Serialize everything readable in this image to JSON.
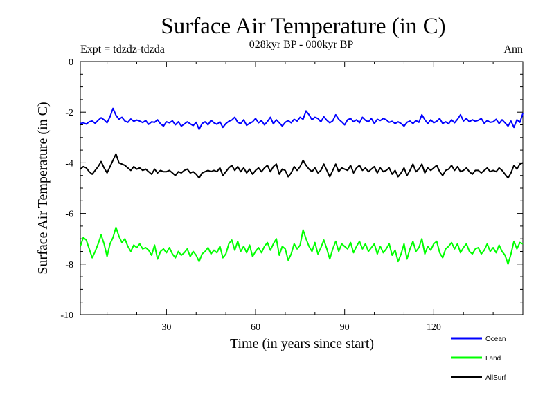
{
  "chart_data": {
    "type": "line",
    "title": "Surface Air Temperature (in C)",
    "subtitle": "028kyr BP - 000kyr BP",
    "experiment_label": "Expt = tdzdz-tdzda",
    "season_label": "Ann",
    "xlabel": "Time (in years since start)",
    "ylabel": "Surface Air Temperature (in C)",
    "xlim": [
      1,
      150
    ],
    "ylim": [
      -10,
      0
    ],
    "x_ticks": [
      30,
      60,
      90,
      120
    ],
    "y_ticks": [
      0,
      -2,
      -4,
      -6,
      -8,
      -10
    ],
    "grid": false,
    "legend_position": "bottom-right",
    "series": [
      {
        "name": "Ocean",
        "color": "#0000ff",
        "values": [
          -2.45,
          -2.42,
          -2.47,
          -2.38,
          -2.35,
          -2.44,
          -2.32,
          -2.22,
          -2.3,
          -2.42,
          -2.18,
          -1.85,
          -2.12,
          -2.28,
          -2.2,
          -2.35,
          -2.4,
          -2.27,
          -2.36,
          -2.31,
          -2.35,
          -2.41,
          -2.33,
          -2.48,
          -2.38,
          -2.4,
          -2.3,
          -2.46,
          -2.55,
          -2.38,
          -2.42,
          -2.34,
          -2.5,
          -2.38,
          -2.55,
          -2.47,
          -2.38,
          -2.46,
          -2.53,
          -2.4,
          -2.68,
          -2.45,
          -2.38,
          -2.5,
          -2.32,
          -2.42,
          -2.48,
          -2.38,
          -2.6,
          -2.45,
          -2.36,
          -2.31,
          -2.2,
          -2.4,
          -2.45,
          -2.3,
          -2.52,
          -2.44,
          -2.38,
          -2.25,
          -2.42,
          -2.33,
          -2.5,
          -2.37,
          -2.2,
          -2.46,
          -2.3,
          -2.42,
          -2.55,
          -2.4,
          -2.33,
          -2.42,
          -2.28,
          -2.35,
          -2.2,
          -2.28,
          -1.95,
          -2.1,
          -2.3,
          -2.2,
          -2.25,
          -2.38,
          -2.18,
          -2.32,
          -2.42,
          -2.34,
          -2.1,
          -2.28,
          -2.38,
          -2.5,
          -2.3,
          -2.25,
          -2.38,
          -2.3,
          -2.42,
          -2.2,
          -2.32,
          -2.38,
          -2.25,
          -2.45,
          -2.28,
          -2.33,
          -2.25,
          -2.3,
          -2.4,
          -2.36,
          -2.45,
          -2.38,
          -2.45,
          -2.55,
          -2.4,
          -2.35,
          -2.45,
          -2.33,
          -2.4,
          -2.1,
          -2.3,
          -2.45,
          -2.3,
          -2.42,
          -2.36,
          -2.25,
          -2.45,
          -2.38,
          -2.46,
          -2.3,
          -2.42,
          -2.28,
          -2.1,
          -2.35,
          -2.25,
          -2.38,
          -2.3,
          -2.36,
          -2.32,
          -2.25,
          -2.44,
          -2.33,
          -2.4,
          -2.38,
          -2.28,
          -2.45,
          -2.3,
          -2.42,
          -2.55,
          -2.35,
          -2.6,
          -2.3,
          -2.4,
          -2.05
        ],
        "noise_placeholder": ""
      },
      {
        "name": "Land",
        "color": "#00ff00",
        "values": [
          -7.3,
          -6.95,
          -7.05,
          -7.4,
          -7.75,
          -7.5,
          -7.2,
          -6.85,
          -7.2,
          -7.7,
          -7.2,
          -6.95,
          -6.55,
          -6.9,
          -7.15,
          -7.0,
          -7.3,
          -7.5,
          -7.25,
          -7.35,
          -7.2,
          -7.4,
          -7.35,
          -7.45,
          -7.65,
          -7.25,
          -7.8,
          -7.5,
          -7.4,
          -7.55,
          -7.35,
          -7.6,
          -7.75,
          -7.5,
          -7.65,
          -7.55,
          -7.4,
          -7.7,
          -7.5,
          -7.65,
          -7.9,
          -7.6,
          -7.5,
          -7.35,
          -7.6,
          -7.45,
          -7.55,
          -7.3,
          -7.75,
          -7.6,
          -7.2,
          -7.05,
          -7.45,
          -7.1,
          -7.5,
          -7.3,
          -7.55,
          -7.25,
          -7.7,
          -7.5,
          -7.35,
          -7.55,
          -7.3,
          -7.15,
          -7.45,
          -7.2,
          -7.0,
          -7.65,
          -7.3,
          -7.4,
          -7.85,
          -7.6,
          -7.2,
          -7.4,
          -7.25,
          -6.65,
          -7.0,
          -7.3,
          -7.5,
          -7.15,
          -7.6,
          -7.35,
          -7.05,
          -7.4,
          -7.8,
          -7.4,
          -7.1,
          -7.5,
          -7.2,
          -7.3,
          -7.4,
          -7.15,
          -7.55,
          -7.3,
          -7.1,
          -7.4,
          -7.2,
          -7.5,
          -7.35,
          -7.2,
          -7.6,
          -7.3,
          -7.55,
          -7.4,
          -7.2,
          -7.65,
          -7.45,
          -7.9,
          -7.6,
          -7.2,
          -7.8,
          -7.4,
          -7.1,
          -7.5,
          -7.35,
          -7.0,
          -7.6,
          -7.3,
          -7.45,
          -7.2,
          -7.1,
          -7.55,
          -7.75,
          -7.4,
          -7.3,
          -7.15,
          -7.4,
          -7.2,
          -7.55,
          -7.35,
          -7.2,
          -7.5,
          -7.6,
          -7.4,
          -7.35,
          -7.6,
          -7.45,
          -7.2,
          -7.5,
          -7.35,
          -7.55,
          -7.25,
          -7.5,
          -7.65,
          -8.0,
          -7.6,
          -7.1,
          -7.4,
          -7.15,
          -7.2
        ],
        "noise_placeholder": ""
      },
      {
        "name": "AllSurf",
        "color": "#000000",
        "values": [
          -4.25,
          -4.15,
          -4.2,
          -4.35,
          -4.45,
          -4.3,
          -4.15,
          -3.95,
          -4.2,
          -4.4,
          -4.15,
          -3.9,
          -3.65,
          -4.0,
          -4.05,
          -4.1,
          -4.2,
          -4.3,
          -4.15,
          -4.25,
          -4.2,
          -4.3,
          -4.25,
          -4.35,
          -4.45,
          -4.25,
          -4.4,
          -4.3,
          -4.35,
          -4.35,
          -4.3,
          -4.4,
          -4.5,
          -4.35,
          -4.4,
          -4.3,
          -4.25,
          -4.4,
          -4.35,
          -4.45,
          -4.6,
          -4.4,
          -4.35,
          -4.3,
          -4.35,
          -4.3,
          -4.35,
          -4.2,
          -4.5,
          -4.35,
          -4.2,
          -4.1,
          -4.3,
          -4.15,
          -4.35,
          -4.2,
          -4.4,
          -4.25,
          -4.45,
          -4.3,
          -4.2,
          -4.35,
          -4.2,
          -4.1,
          -4.35,
          -4.15,
          -4.05,
          -4.45,
          -4.25,
          -4.3,
          -4.55,
          -4.4,
          -4.15,
          -4.3,
          -4.15,
          -3.9,
          -4.1,
          -4.25,
          -4.35,
          -4.2,
          -4.4,
          -4.3,
          -4.05,
          -4.3,
          -4.55,
          -4.3,
          -4.05,
          -4.35,
          -4.2,
          -4.25,
          -4.3,
          -4.1,
          -4.4,
          -4.2,
          -4.1,
          -4.3,
          -4.2,
          -4.35,
          -4.25,
          -4.15,
          -4.4,
          -4.2,
          -4.35,
          -4.3,
          -4.2,
          -4.45,
          -4.3,
          -4.55,
          -4.4,
          -4.2,
          -4.5,
          -4.3,
          -4.05,
          -4.35,
          -4.25,
          -4.05,
          -4.4,
          -4.2,
          -4.3,
          -4.2,
          -4.1,
          -4.35,
          -4.5,
          -4.3,
          -4.25,
          -4.1,
          -4.3,
          -4.15,
          -4.35,
          -4.3,
          -4.2,
          -4.35,
          -4.45,
          -4.3,
          -4.3,
          -4.4,
          -4.3,
          -4.2,
          -4.35,
          -4.3,
          -4.35,
          -4.2,
          -4.3,
          -4.45,
          -4.6,
          -4.4,
          -4.1,
          -4.25,
          -4.05,
          -4.0
        ],
        "noise_placeholder": ""
      }
    ]
  }
}
